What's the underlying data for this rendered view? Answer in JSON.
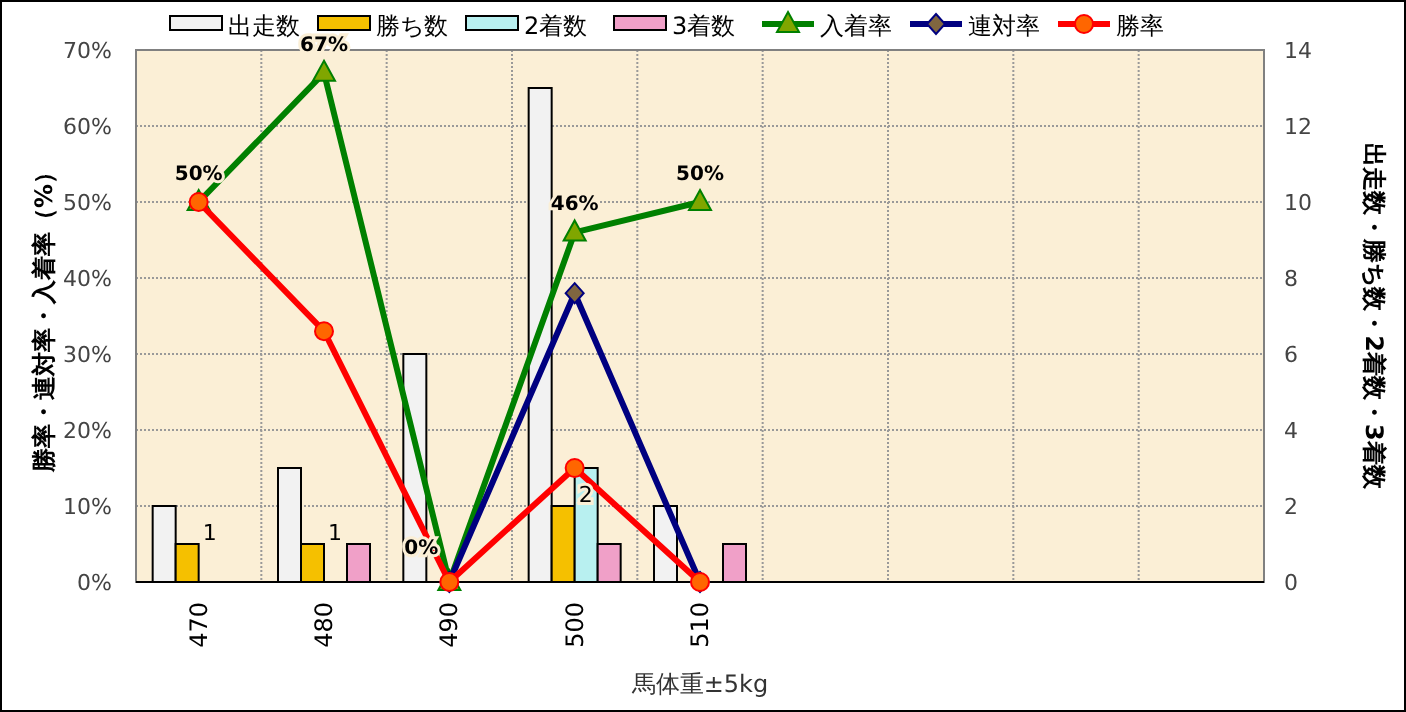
{
  "chart_data": {
    "type": "bar",
    "xlabel": "馬体重±5kg",
    "ylabel": "勝率・連対率・入着率（%）",
    "y2label": "出走数・勝ち数・2着数・3着数",
    "categories": [
      "470",
      "480",
      "490",
      "500",
      "510",
      null,
      null,
      null,
      null
    ],
    "series": [
      {
        "name": "出走数",
        "color": "#f2f2f2",
        "axis": "y2",
        "values": [
          2,
          3,
          6,
          13,
          2,
          null,
          null,
          null,
          null
        ]
      },
      {
        "name": "勝ち数",
        "color": "#f5c000",
        "axis": "y2",
        "values": [
          1,
          1,
          0,
          2,
          0,
          null,
          null,
          null,
          null
        ],
        "value_labels": [
          "1",
          "1",
          null,
          "2",
          null,
          null,
          null,
          null,
          null
        ]
      },
      {
        "name": "2着数",
        "color": "#b8f0f0",
        "axis": "y2",
        "values": [
          0,
          0,
          0,
          3,
          0,
          null,
          null,
          null,
          null
        ]
      },
      {
        "name": "3着数",
        "color": "#f0a0c8",
        "axis": "y2",
        "values": [
          0,
          1,
          0,
          1,
          1,
          null,
          null,
          null,
          null
        ]
      },
      {
        "name": "入着率",
        "type": "line",
        "color": "#008000",
        "marker": "triangle",
        "values": [
          50,
          67,
          0,
          46,
          50,
          null,
          null,
          null,
          null
        ],
        "value_labels": [
          "50%",
          "67%",
          "0%",
          "46%",
          "50%",
          null,
          null,
          null,
          null
        ]
      },
      {
        "name": "連対率",
        "type": "line",
        "color": "#000080",
        "marker": "diamond",
        "values": [
          null,
          null,
          0,
          38,
          0,
          null,
          null,
          null,
          null
        ]
      },
      {
        "name": "勝率",
        "type": "line",
        "color": "#ff0000",
        "marker": "circle",
        "values": [
          50,
          33,
          0,
          15,
          0,
          null,
          null,
          null,
          null
        ]
      }
    ],
    "ylim": [
      0,
      70
    ],
    "yticks": [
      {
        "value": 0,
        "label": "0%"
      },
      {
        "value": 10,
        "label": "10%"
      },
      {
        "value": 20,
        "label": "20%"
      },
      {
        "value": 30,
        "label": "30%"
      },
      {
        "value": 40,
        "label": "40%"
      },
      {
        "value": 50,
        "label": "50%"
      },
      {
        "value": 60,
        "label": "60%"
      },
      {
        "value": 70,
        "label": "70%"
      }
    ],
    "y2lim": [
      0,
      14
    ],
    "y2ticks": [
      0,
      2,
      4,
      6,
      8,
      10,
      12,
      14
    ],
    "grid": true,
    "legend": "top"
  }
}
